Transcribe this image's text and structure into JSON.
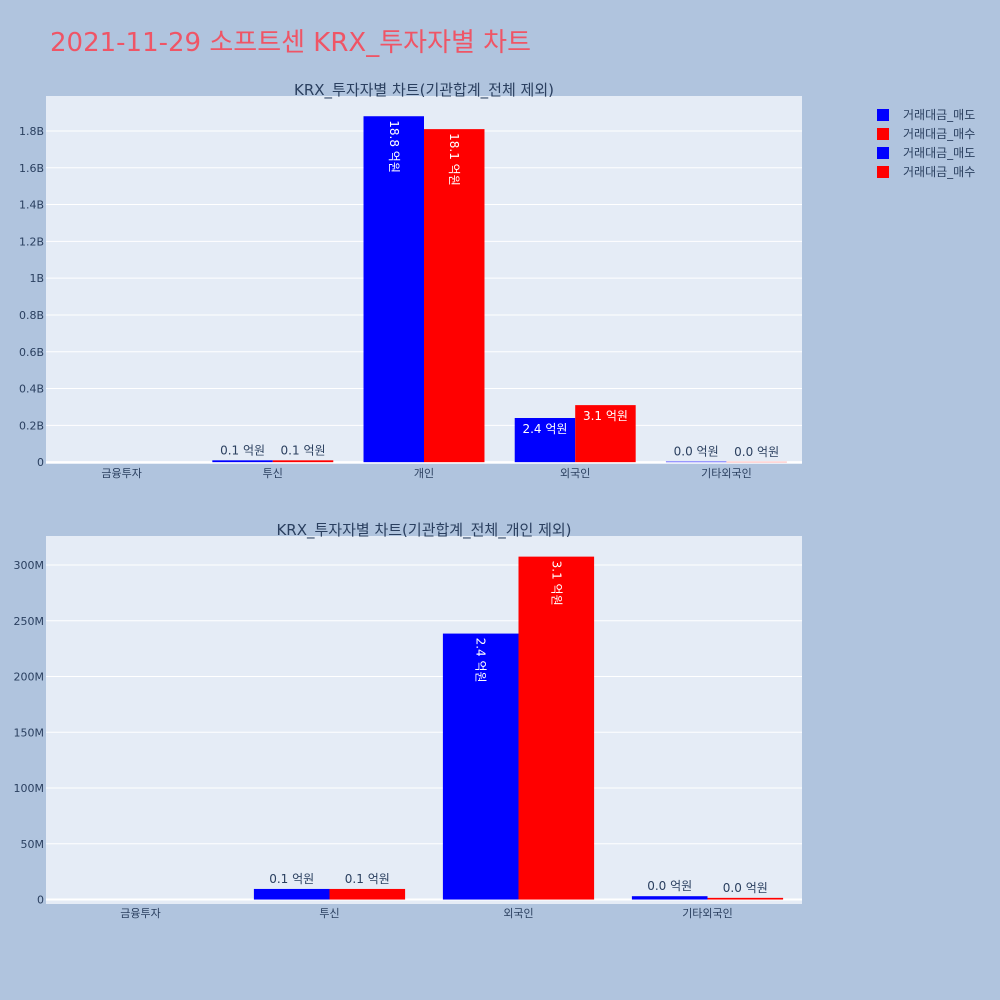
{
  "page_title": "2021-11-29 소프트센 KRX_투자자별 차트",
  "legend": [
    {
      "name": "거래대금_매도",
      "color": "#0000ff"
    },
    {
      "name": "거래대금_매수",
      "color": "#ff0000"
    },
    {
      "name": "거래대금_매도",
      "color": "#0000ff"
    },
    {
      "name": "거래대금_매수",
      "color": "#ff0000"
    }
  ],
  "chart_data": [
    {
      "type": "bar",
      "title": "KRX_투자자별 차트(기관합계_전체 제외)",
      "categories": [
        "금융투자",
        "투신",
        "개인",
        "외국인",
        "기타외국인"
      ],
      "series": [
        {
          "name": "거래대금_매도",
          "color": "#0000ff",
          "values": [
            0,
            10000000,
            1880000000,
            240000000,
            3000000
          ],
          "labels": [
            "",
            "0.1 억원",
            "18.8 억원",
            "2.4 억원",
            "0.0 억원"
          ]
        },
        {
          "name": "거래대금_매수",
          "color": "#ff0000",
          "values": [
            0,
            10000000,
            1810000000,
            310000000,
            1500000
          ],
          "labels": [
            "",
            "0.1 억원",
            "18.1 억원",
            "3.1 억원",
            "0.0 억원"
          ]
        }
      ],
      "yticks": [
        {
          "v": 0,
          "t": "0"
        },
        {
          "v": 200000000,
          "t": "0.2B"
        },
        {
          "v": 400000000,
          "t": "0.4B"
        },
        {
          "v": 600000000,
          "t": "0.6B"
        },
        {
          "v": 800000000,
          "t": "0.8B"
        },
        {
          "v": 1000000000,
          "t": "1B"
        },
        {
          "v": 1200000000,
          "t": "1.2B"
        },
        {
          "v": 1400000000,
          "t": "1.4B"
        },
        {
          "v": 1600000000,
          "t": "1.6B"
        },
        {
          "v": 1800000000,
          "t": "1.8B"
        }
      ],
      "ylim": [
        -10000000,
        1990000000
      ]
    },
    {
      "type": "bar",
      "title": "KRX_투자자별 차트(기관합계_전체_개인 제외)",
      "categories": [
        "금융투자",
        "투신",
        "외국인",
        "기타외국인"
      ],
      "series": [
        {
          "name": "거래대금_매도",
          "color": "#0000ff",
          "values": [
            0,
            9500000,
            238500000,
            3000000
          ],
          "labels": [
            "",
            "0.1 억원",
            "2.4 억원",
            "0.0 억원"
          ]
        },
        {
          "name": "거래대금_매수",
          "color": "#ff0000",
          "values": [
            0,
            9500000,
            307500000,
            1500000
          ],
          "labels": [
            "",
            "0.1 억원",
            "3.1 억원",
            "0.0 억원"
          ]
        }
      ],
      "yticks": [
        {
          "v": 0,
          "t": "0"
        },
        {
          "v": 50000000,
          "t": "50M"
        },
        {
          "v": 100000000,
          "t": "100M"
        },
        {
          "v": 150000000,
          "t": "150M"
        },
        {
          "v": 200000000,
          "t": "200M"
        },
        {
          "v": 250000000,
          "t": "250M"
        },
        {
          "v": 300000000,
          "t": "300M"
        }
      ],
      "ylim": [
        -4000000,
        326000000
      ]
    }
  ]
}
